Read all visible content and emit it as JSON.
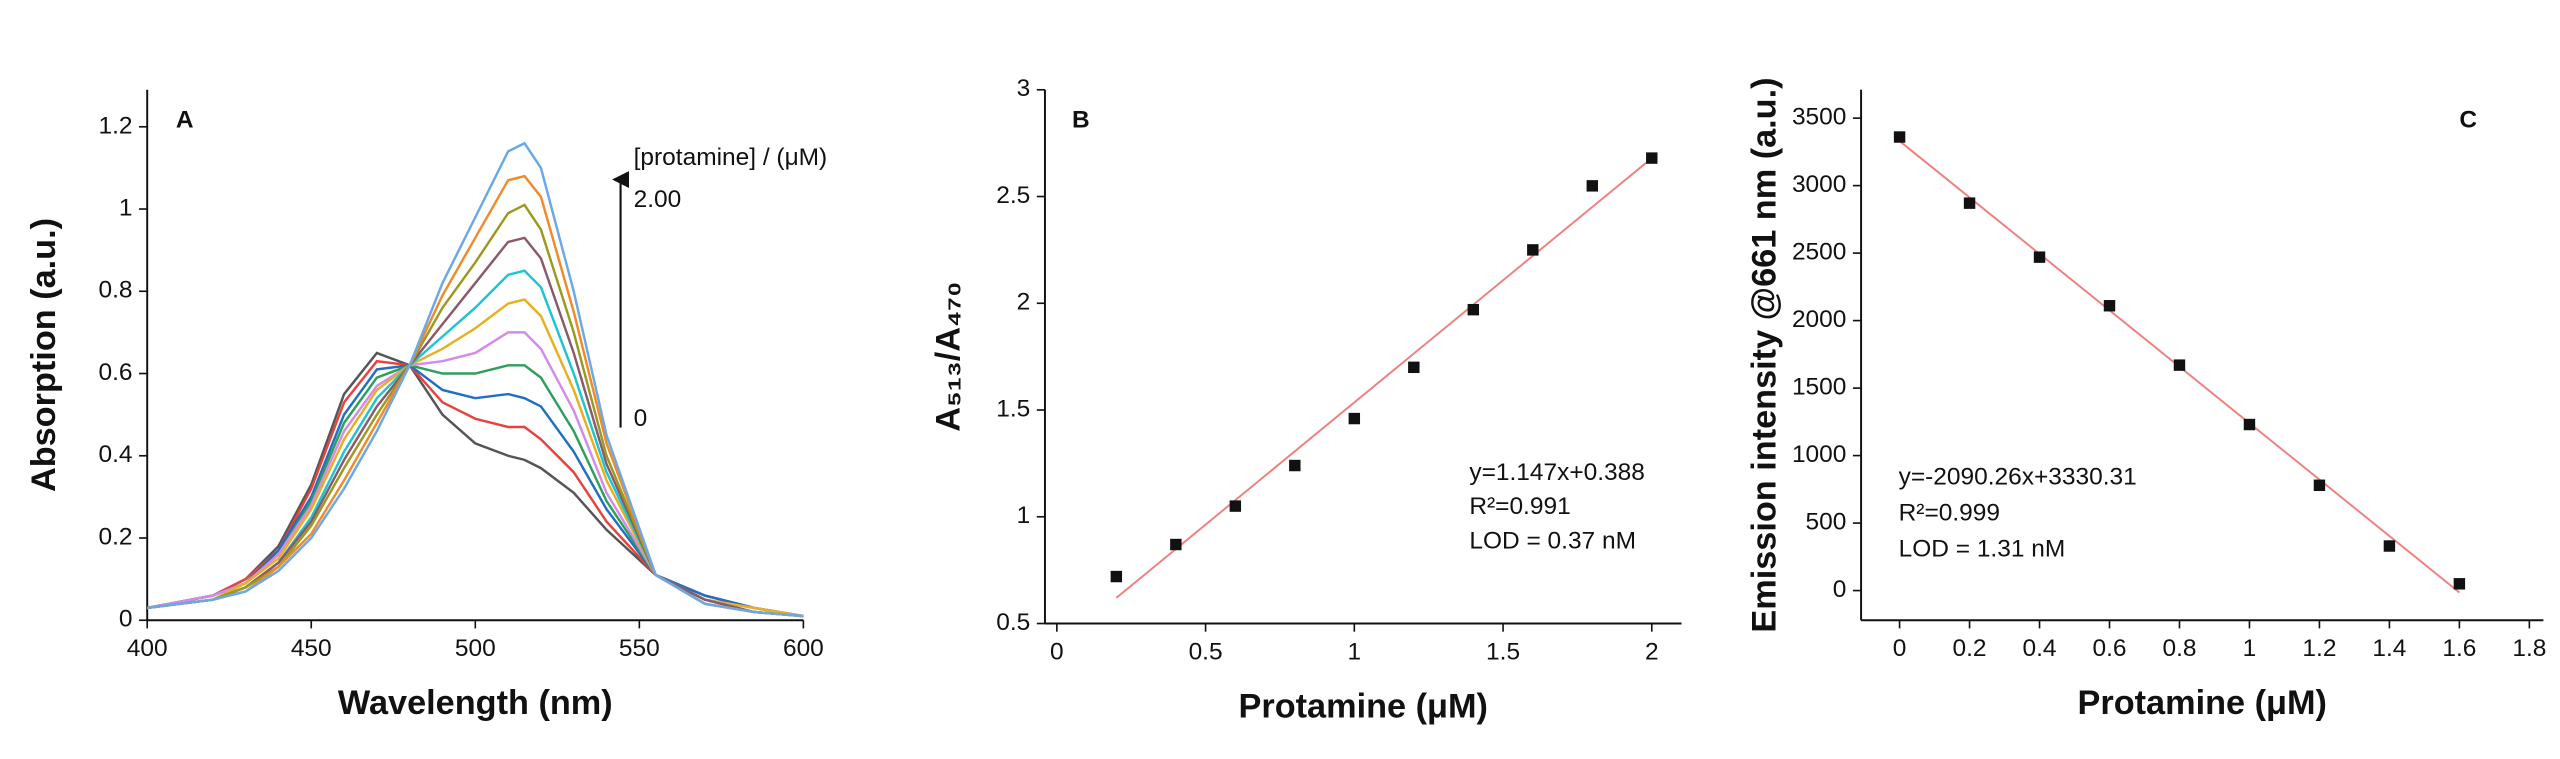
{
  "chart_data": [
    {
      "type": "line",
      "panel_label": "A",
      "x_label": "Wavelength (nm)",
      "y_label": "Absorption (a.u.)",
      "xlim": [
        400,
        600
      ],
      "ylim": [
        0,
        1.29
      ],
      "xticks": [
        400,
        450,
        500,
        550,
        600
      ],
      "yticks": [
        0,
        0.2,
        0.4,
        0.6,
        0.8,
        1.0,
        1.2
      ],
      "x": [
        400,
        420,
        430,
        440,
        450,
        460,
        470,
        480,
        490,
        500,
        510,
        515,
        520,
        530,
        540,
        555,
        570,
        585,
        600
      ],
      "series": [
        {
          "color": "#555555",
          "values": [
            0.03,
            0.06,
            0.1,
            0.18,
            0.33,
            0.55,
            0.65,
            0.62,
            0.5,
            0.43,
            0.4,
            0.39,
            0.37,
            0.31,
            0.22,
            0.11,
            0.06,
            0.03,
            0.01
          ]
        },
        {
          "color": "#e8423c",
          "values": [
            0.03,
            0.06,
            0.1,
            0.17,
            0.32,
            0.53,
            0.63,
            0.62,
            0.53,
            0.49,
            0.47,
            0.47,
            0.44,
            0.36,
            0.24,
            0.11,
            0.06,
            0.03,
            0.01
          ]
        },
        {
          "color": "#1f6fc4",
          "values": [
            0.03,
            0.06,
            0.09,
            0.17,
            0.3,
            0.5,
            0.61,
            0.62,
            0.56,
            0.54,
            0.55,
            0.54,
            0.52,
            0.41,
            0.27,
            0.11,
            0.06,
            0.03,
            0.01
          ]
        },
        {
          "color": "#2e9e5b",
          "values": [
            0.03,
            0.06,
            0.09,
            0.16,
            0.29,
            0.48,
            0.59,
            0.62,
            0.6,
            0.6,
            0.62,
            0.62,
            0.59,
            0.46,
            0.29,
            0.11,
            0.05,
            0.03,
            0.01
          ]
        },
        {
          "color": "#d48be8",
          "values": [
            0.03,
            0.06,
            0.09,
            0.16,
            0.28,
            0.46,
            0.57,
            0.62,
            0.63,
            0.65,
            0.7,
            0.7,
            0.66,
            0.51,
            0.31,
            0.11,
            0.05,
            0.03,
            0.01
          ]
        },
        {
          "color": "#e8b020",
          "values": [
            0.03,
            0.05,
            0.09,
            0.15,
            0.27,
            0.44,
            0.56,
            0.62,
            0.66,
            0.71,
            0.77,
            0.78,
            0.74,
            0.56,
            0.34,
            0.11,
            0.05,
            0.03,
            0.01
          ]
        },
        {
          "color": "#1cc4d4",
          "values": [
            0.03,
            0.05,
            0.08,
            0.14,
            0.25,
            0.41,
            0.54,
            0.62,
            0.69,
            0.76,
            0.84,
            0.85,
            0.81,
            0.6,
            0.36,
            0.11,
            0.05,
            0.02,
            0.01
          ]
        },
        {
          "color": "#8a5a6a",
          "values": [
            0.03,
            0.05,
            0.08,
            0.14,
            0.24,
            0.39,
            0.52,
            0.62,
            0.72,
            0.82,
            0.92,
            0.93,
            0.88,
            0.65,
            0.38,
            0.11,
            0.05,
            0.02,
            0.01
          ]
        },
        {
          "color": "#9a9a20",
          "values": [
            0.03,
            0.05,
            0.08,
            0.13,
            0.23,
            0.37,
            0.5,
            0.62,
            0.76,
            0.87,
            0.99,
            1.01,
            0.95,
            0.7,
            0.4,
            0.11,
            0.04,
            0.02,
            0.01
          ]
        },
        {
          "color": "#f08a2a",
          "values": [
            0.03,
            0.05,
            0.07,
            0.13,
            0.21,
            0.34,
            0.48,
            0.62,
            0.79,
            0.93,
            1.07,
            1.08,
            1.03,
            0.75,
            0.43,
            0.11,
            0.04,
            0.02,
            0.01
          ]
        },
        {
          "color": "#6aa8e8",
          "values": [
            0.03,
            0.05,
            0.07,
            0.12,
            0.2,
            0.32,
            0.46,
            0.62,
            0.82,
            0.98,
            1.14,
            1.16,
            1.1,
            0.8,
            0.45,
            0.11,
            0.04,
            0.02,
            0.01
          ]
        }
      ],
      "annotations": [
        "[protamine] / (μM)",
        "2.00",
        "0"
      ]
    },
    {
      "type": "scatter",
      "panel_label": "B",
      "x_label": "Protamine (μM)",
      "y_label": "A₅₁₃/A₄₇₀",
      "xlim": [
        -0.04,
        2.1
      ],
      "ylim": [
        0.5,
        3.0
      ],
      "xticks": [
        0,
        0.5,
        1.0,
        1.5,
        2.0
      ],
      "yticks": [
        0.5,
        1.0,
        1.5,
        2.0,
        2.5,
        3.0
      ],
      "x": [
        0.2,
        0.4,
        0.6,
        0.8,
        1.0,
        1.2,
        1.4,
        1.6,
        1.8,
        2.0
      ],
      "values": [
        0.72,
        0.87,
        1.05,
        1.24,
        1.46,
        1.7,
        1.97,
        2.25,
        2.55,
        2.68
      ],
      "color": "#111111",
      "fit": {
        "x": [
          0.2,
          2.0
        ],
        "y": [
          0.62,
          2.68
        ],
        "color": "#f08080"
      },
      "annotations": [
        "y=1.147x+0.388",
        "R²=0.991",
        "LOD = 0.37 nM"
      ]
    },
    {
      "type": "scatter",
      "panel_label": "C",
      "x_label": "Protamine (μM)",
      "y_label": "Emission intensity @661 nm (a.u.)",
      "xlim": [
        -0.11,
        1.84
      ],
      "ylim": [
        -220,
        3710
      ],
      "xticks": [
        0,
        0.2,
        0.4,
        0.6,
        0.8,
        1.0,
        1.2,
        1.4,
        1.6,
        1.8
      ],
      "yticks": [
        0,
        500,
        1000,
        1500,
        2000,
        2500,
        3000,
        3500
      ],
      "x": [
        0,
        0.2,
        0.4,
        0.6,
        0.8,
        1.0,
        1.2,
        1.4,
        1.6
      ],
      "values": [
        3360,
        2870,
        2470,
        2110,
        1670,
        1230,
        780,
        330,
        50
      ],
      "color": "#111111",
      "fit": {
        "x": [
          0,
          1.6
        ],
        "y": [
          3330,
          -14
        ],
        "color": "#f08080"
      },
      "annotations": [
        "y=-2090.26x+3330.31",
        "R²=0.999",
        "LOD = 1.31 nM"
      ]
    }
  ]
}
